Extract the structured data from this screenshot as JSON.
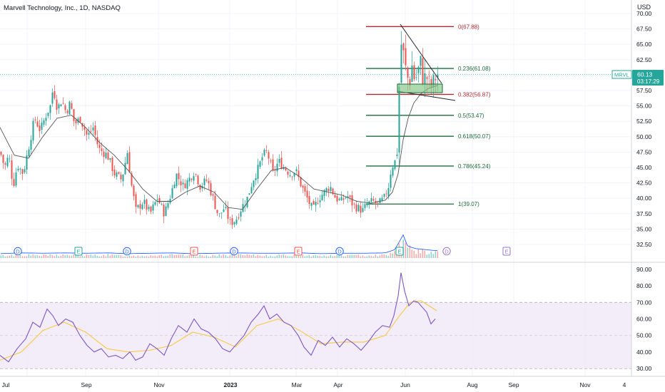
{
  "header": {
    "title": "Marvell Technology, Inc., 1D, NASDAQ",
    "currency": "USD"
  },
  "colors": {
    "up": "#26a69a",
    "down": "#ef5350",
    "ma": "#555555",
    "fib_red": "#b22833",
    "fib_green": "#1e6b3a",
    "rsi_line": "#7e57c2",
    "rsi_ma": "#f7c948",
    "rsi_band": "#ede7f6",
    "last_price_label": "#26a69a",
    "consolidation_box": "#81c784"
  },
  "price_axis": {
    "ticks": [
      "70.00",
      "67.50",
      "65.00",
      "62.50",
      "60.00",
      "57.50",
      "55.00",
      "52.50",
      "50.00",
      "47.50",
      "45.00",
      "42.50",
      "40.00",
      "37.50",
      "35.00",
      "32.50"
    ]
  },
  "rsi_axis": {
    "ticks": [
      "90.00",
      "80.00",
      "70.00",
      "60.00",
      "50.00",
      "40.00",
      "30.00"
    ]
  },
  "time_axis": {
    "labels": [
      "Jul",
      "Sep",
      "Nov",
      "2023",
      "Mar",
      "Apr",
      "Jun",
      "Aug",
      "Sep",
      "Nov",
      "4"
    ]
  },
  "last_price": {
    "symbol": "MRVL",
    "price": "60.13",
    "countdown": "03:17:29"
  },
  "fibonacci": [
    {
      "label": "0(67.88)",
      "level": 67.88,
      "color": "red"
    },
    {
      "label": "0.236(61.08)",
      "level": 61.08,
      "color": "green"
    },
    {
      "label": "0.382(56.87)",
      "level": 56.87,
      "color": "red"
    },
    {
      "label": "0.5(53.47)",
      "level": 53.47,
      "color": "green"
    },
    {
      "label": "0.618(50.07)",
      "level": 50.07,
      "color": "green"
    },
    {
      "label": "0.786(45.24)",
      "level": 45.24,
      "color": "green"
    },
    {
      "label": "1(39.07)",
      "level": 39.07,
      "color": "green"
    }
  ],
  "events": [
    "D",
    "E",
    "D",
    "E",
    "D",
    "E",
    "D",
    "E",
    "D",
    "E"
  ],
  "chart_data": {
    "type": "candlestick",
    "title": "Marvell Technology, Inc., 1D, NASDAQ",
    "price_range": [
      31.5,
      70.5
    ],
    "rsi_range": [
      28,
      94
    ],
    "rsi_band": [
      30,
      70
    ],
    "rsi_midline": 50,
    "price_path": [
      [
        0,
        47.5
      ],
      [
        6,
        45
      ],
      [
        12,
        47
      ],
      [
        18,
        42
      ],
      [
        24,
        45.5
      ],
      [
        32,
        44
      ],
      [
        40,
        48.5
      ],
      [
        48,
        53
      ],
      [
        56,
        51
      ],
      [
        64,
        53.5
      ],
      [
        70,
        55
      ],
      [
        74,
        58
      ],
      [
        80,
        54.5
      ],
      [
        86,
        56
      ],
      [
        92,
        54
      ],
      [
        98,
        55.5
      ],
      [
        104,
        52
      ],
      [
        112,
        53
      ],
      [
        122,
        50
      ],
      [
        130,
        51.5
      ],
      [
        138,
        48
      ],
      [
        150,
        47
      ],
      [
        160,
        44
      ],
      [
        170,
        43
      ],
      [
        178,
        47.5
      ],
      [
        184,
        42
      ],
      [
        190,
        38
      ],
      [
        200,
        39.5
      ],
      [
        210,
        37.5
      ],
      [
        220,
        40
      ],
      [
        230,
        37.5
      ],
      [
        240,
        41
      ],
      [
        246,
        44
      ],
      [
        256,
        42
      ],
      [
        264,
        43
      ],
      [
        272,
        44.5
      ],
      [
        280,
        42
      ],
      [
        290,
        43
      ],
      [
        298,
        40
      ],
      [
        306,
        37
      ],
      [
        314,
        38.5
      ],
      [
        322,
        36
      ],
      [
        330,
        36.5
      ],
      [
        338,
        38.5
      ],
      [
        346,
        40
      ],
      [
        354,
        43
      ],
      [
        362,
        45
      ],
      [
        368,
        47
      ],
      [
        374,
        47.5
      ],
      [
        382,
        44
      ],
      [
        390,
        46
      ],
      [
        398,
        45
      ],
      [
        406,
        44
      ],
      [
        414,
        44.5
      ],
      [
        422,
        42
      ],
      [
        430,
        40
      ],
      [
        438,
        38
      ],
      [
        446,
        40
      ],
      [
        454,
        41
      ],
      [
        462,
        42
      ],
      [
        470,
        40
      ],
      [
        478,
        39.5
      ],
      [
        486,
        40.5
      ],
      [
        494,
        39
      ],
      [
        500,
        38.5
      ],
      [
        508,
        38
      ],
      [
        514,
        39
      ],
      [
        522,
        39.5
      ],
      [
        530,
        39
      ],
      [
        538,
        40
      ],
      [
        544,
        42
      ],
      [
        548,
        45
      ],
      [
        553,
        46
      ],
      [
        557,
        48.5
      ],
      [
        560,
        63
      ],
      [
        563,
        66
      ],
      [
        566,
        62
      ],
      [
        569,
        60.5
      ],
      [
        573,
        58.5
      ],
      [
        577,
        61.5
      ],
      [
        581,
        59
      ],
      [
        585,
        60.5
      ],
      [
        589,
        62
      ],
      [
        593,
        59
      ],
      [
        597,
        60
      ],
      [
        601,
        58.5
      ],
      [
        605,
        58
      ],
      [
        609,
        59.5
      ],
      [
        613,
        60.13
      ]
    ],
    "ma_path": [
      [
        0,
        51.5
      ],
      [
        20,
        47
      ],
      [
        40,
        46.5
      ],
      [
        60,
        50
      ],
      [
        80,
        53
      ],
      [
        100,
        53.5
      ],
      [
        120,
        51.5
      ],
      [
        140,
        49
      ],
      [
        160,
        47
      ],
      [
        180,
        44.5
      ],
      [
        200,
        41.5
      ],
      [
        220,
        39.5
      ],
      [
        240,
        39.5
      ],
      [
        260,
        41
      ],
      [
        280,
        42
      ],
      [
        300,
        41
      ],
      [
        320,
        38.5
      ],
      [
        340,
        38.2
      ],
      [
        360,
        41.5
      ],
      [
        380,
        44.5
      ],
      [
        400,
        45
      ],
      [
        420,
        43.5
      ],
      [
        440,
        41.5
      ],
      [
        460,
        41
      ],
      [
        480,
        40.5
      ],
      [
        500,
        39.5
      ],
      [
        520,
        39.2
      ],
      [
        540,
        39.7
      ],
      [
        550,
        41
      ],
      [
        558,
        44
      ],
      [
        565,
        49.5
      ],
      [
        572,
        53
      ],
      [
        580,
        55.5
      ],
      [
        590,
        57
      ],
      [
        600,
        57.8
      ],
      [
        613,
        58.3
      ]
    ],
    "rsi_path": [
      [
        0,
        38
      ],
      [
        12,
        34
      ],
      [
        24,
        42
      ],
      [
        36,
        48
      ],
      [
        46,
        58
      ],
      [
        56,
        55
      ],
      [
        66,
        66
      ],
      [
        74,
        62
      ],
      [
        82,
        56
      ],
      [
        92,
        60
      ],
      [
        102,
        58
      ],
      [
        112,
        50
      ],
      [
        122,
        44
      ],
      [
        132,
        40
      ],
      [
        142,
        42
      ],
      [
        152,
        37
      ],
      [
        162,
        38
      ],
      [
        172,
        36
      ],
      [
        182,
        40
      ],
      [
        190,
        35
      ],
      [
        200,
        37
      ],
      [
        210,
        45
      ],
      [
        220,
        42
      ],
      [
        230,
        38
      ],
      [
        240,
        48
      ],
      [
        250,
        56
      ],
      [
        262,
        52
      ],
      [
        272,
        60
      ],
      [
        282,
        54
      ],
      [
        292,
        52
      ],
      [
        302,
        48
      ],
      [
        312,
        42
      ],
      [
        322,
        40
      ],
      [
        332,
        45
      ],
      [
        342,
        50
      ],
      [
        352,
        58
      ],
      [
        362,
        63
      ],
      [
        370,
        68
      ],
      [
        378,
        60
      ],
      [
        388,
        63
      ],
      [
        398,
        58
      ],
      [
        408,
        56
      ],
      [
        418,
        50
      ],
      [
        426,
        43
      ],
      [
        436,
        38
      ],
      [
        446,
        47
      ],
      [
        456,
        44
      ],
      [
        466,
        49
      ],
      [
        476,
        43
      ],
      [
        486,
        48
      ],
      [
        496,
        45
      ],
      [
        506,
        41
      ],
      [
        516,
        46
      ],
      [
        526,
        52
      ],
      [
        536,
        56
      ],
      [
        546,
        55
      ],
      [
        552,
        62
      ],
      [
        558,
        74
      ],
      [
        562,
        88
      ],
      [
        567,
        77
      ],
      [
        573,
        68
      ],
      [
        580,
        71
      ],
      [
        586,
        70
      ],
      [
        592,
        67
      ],
      [
        598,
        64
      ],
      [
        604,
        57
      ],
      [
        610,
        60
      ]
    ],
    "rsi_ma_path": [
      [
        0,
        35
      ],
      [
        30,
        40
      ],
      [
        60,
        53
      ],
      [
        90,
        58
      ],
      [
        120,
        52
      ],
      [
        150,
        42
      ],
      [
        180,
        40
      ],
      [
        210,
        41
      ],
      [
        240,
        44
      ],
      [
        270,
        52
      ],
      [
        300,
        49
      ],
      [
        330,
        43
      ],
      [
        360,
        56
      ],
      [
        390,
        60
      ],
      [
        420,
        53
      ],
      [
        450,
        45
      ],
      [
        480,
        46
      ],
      [
        510,
        46
      ],
      [
        540,
        50
      ],
      [
        560,
        62
      ],
      [
        575,
        70
      ],
      [
        590,
        71
      ],
      [
        612,
        65
      ]
    ],
    "volume_profile": [
      [
        0,
        3
      ],
      [
        30,
        4
      ],
      [
        60,
        3.5
      ],
      [
        90,
        4
      ],
      [
        120,
        3.5
      ],
      [
        150,
        4
      ],
      [
        180,
        3
      ],
      [
        210,
        3.5
      ],
      [
        240,
        4
      ],
      [
        270,
        3
      ],
      [
        300,
        3.5
      ],
      [
        330,
        4
      ],
      [
        360,
        3.5
      ],
      [
        390,
        3.5
      ],
      [
        420,
        4
      ],
      [
        450,
        3
      ],
      [
        480,
        3.5
      ],
      [
        510,
        3.5
      ],
      [
        540,
        4
      ],
      [
        555,
        9
      ],
      [
        560,
        20
      ],
      [
        565,
        28
      ],
      [
        570,
        14
      ],
      [
        580,
        10
      ],
      [
        590,
        9
      ],
      [
        600,
        8
      ],
      [
        610,
        7
      ]
    ]
  }
}
